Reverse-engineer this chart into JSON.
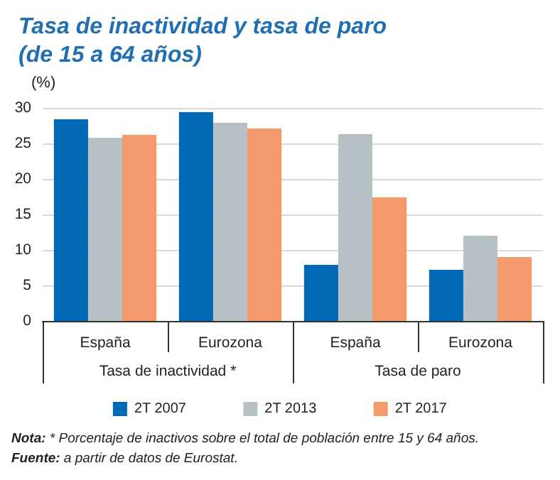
{
  "chart_data": {
    "type": "bar",
    "title": "Tasa de inactividad y tasa de paro\n(de 15 a 64 años)",
    "ylabel": "(%)",
    "categories": [
      "España",
      "Eurozona",
      "España",
      "Eurozona"
    ],
    "series": [
      {
        "name": "2T 2007",
        "color": "#0068b4",
        "values": [
          28.4,
          29.4,
          7.9,
          7.2
        ]
      },
      {
        "name": "2T 2013",
        "color": "#b7c0c5",
        "values": [
          25.8,
          27.9,
          26.3,
          12.0
        ]
      },
      {
        "name": "2T 2017",
        "color": "#f39b6d",
        "values": [
          26.2,
          27.1,
          17.4,
          9.0
        ]
      }
    ],
    "annotations": [
      "Tasa de inactividad *",
      "Tasa de paro",
      "Nota: * Porcentaje de inactivos sobre el total de población entre 15 y 64 años.",
      "Fuente: a partir de datos de Eurostat."
    ],
    "ylim": [
      0,
      30
    ],
    "yticks": [
      0,
      5,
      10,
      15,
      20,
      25,
      30
    ],
    "grid": "y",
    "legend": "bottom"
  }
}
